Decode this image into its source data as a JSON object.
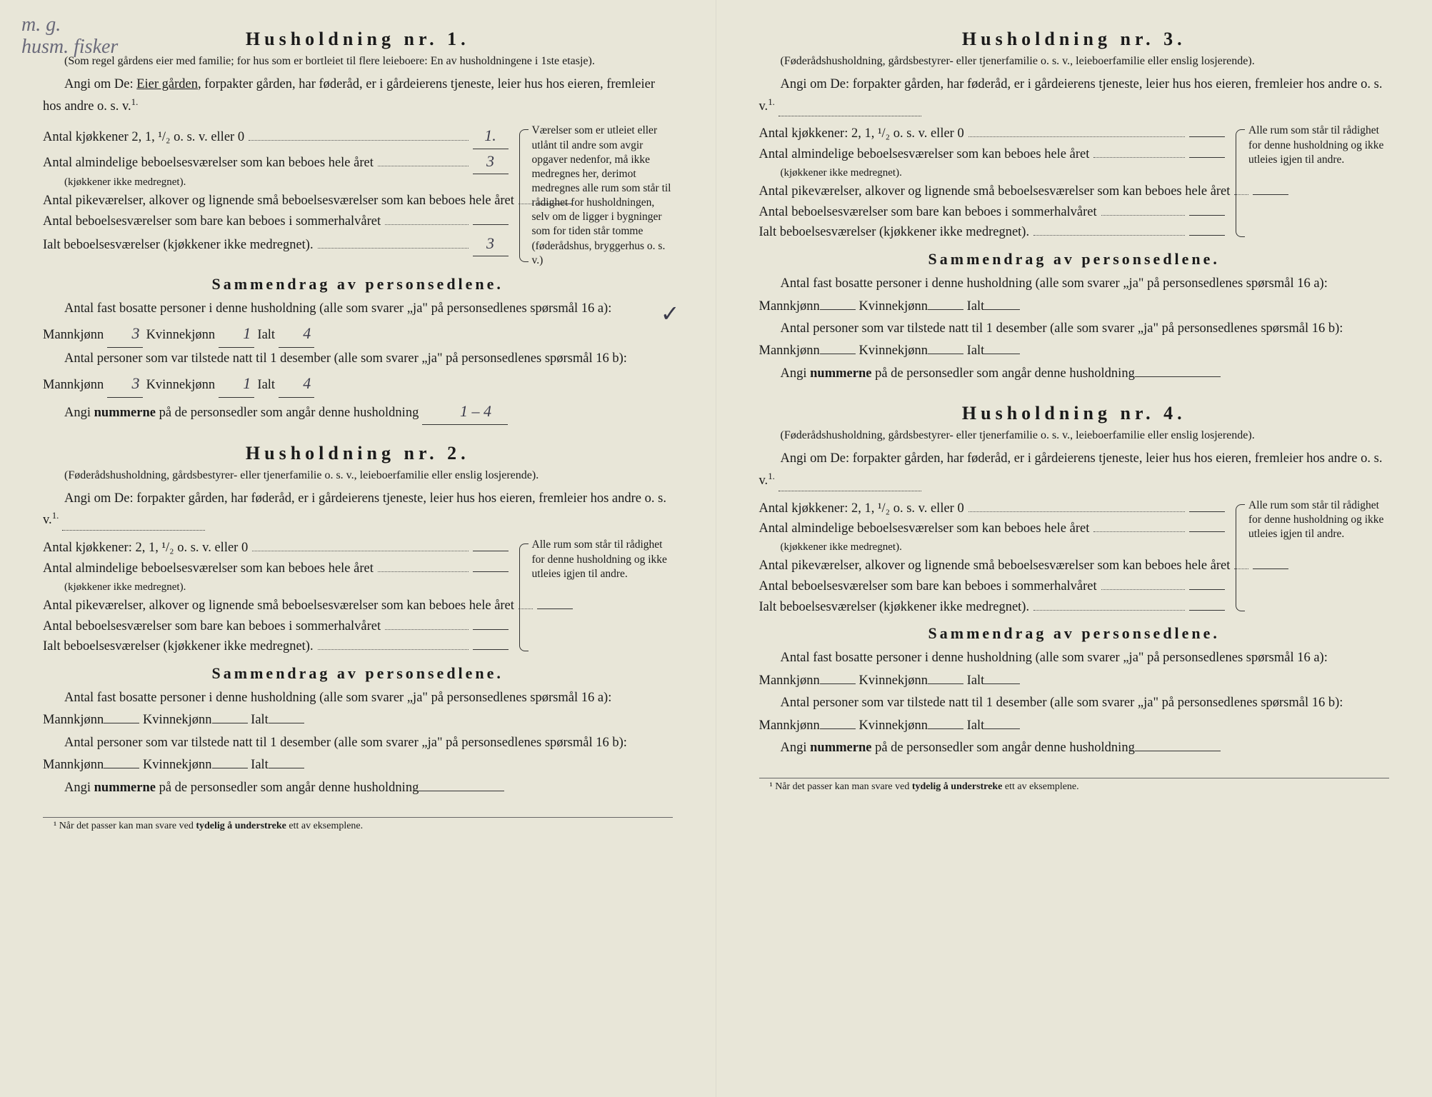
{
  "handwritten_note": "m. g.\nhusm. fisker",
  "households": [
    {
      "title": "Husholdning nr. 1.",
      "subtitle": "(Som regel gårdens eier med familie; for hus som er bortleiet til flere leieboere: En av husholdningene i 1ste etasje).",
      "instr_prefix": "Angi om De:",
      "instr_rest": "Eier gården, forpakter gården, har føderåd, er i gårdeierens tjeneste, leier hus hos eieren, fremleier hos andre o. s. v.",
      "instr_underlined": "Eier gården",
      "rooms": {
        "kjokken_label": "Antal kjøkkener 2, 1, ¹/₂ o. s. v. eller 0",
        "kjokken_val": "1.",
        "almind_label": "Antal almindelige beboelsesværelser som kan beboes hele året",
        "almind_sub": "(kjøkkener ikke medregnet).",
        "almind_val": "3",
        "pike_label": "Antal pikeværelser, alkover og lignende små beboelsesværelser som kan beboes hele året",
        "pike_val": "",
        "sommer_label": "Antal beboelsesværelser som bare kan beboes i sommerhalvåret",
        "sommer_val": "",
        "ialt_label": "Ialt beboelsesværelser (kjøkkener ikke medregnet).",
        "ialt_val": "3"
      },
      "sidebar_text": "Værelser som er utleiet eller utlånt til andre som avgir opgaver nedenfor, må ikke medregnes her, derimot medregnes alle rum som står til rådighet for husholdningen, selv om de ligger i bygninger som for tiden står tomme (føderådshus, bryggerhus o. s. v.)",
      "summary": {
        "title": "Sammendrag av personsedlene.",
        "line1_pre": "Antal fast bosatte personer i denne husholdning (alle som svarer „ja\" på personsedlenes spørsmål 16 a): Mannkjønn",
        "line1_m": "3",
        "line1_kv_label": "Kvinnekjønn",
        "line1_kv": "1",
        "line1_ialt_label": "Ialt",
        "line1_ialt": "4",
        "line2_pre": "Antal personer som var tilstede natt til 1 desember (alle som svarer „ja\" på personsedlenes spørsmål 16 b): Mannkjønn",
        "line2_m": "3",
        "line2_kv": "1",
        "line2_ialt": "4",
        "line3_pre": "Angi nummerne på de personsedler som angår denne husholdning",
        "line3_val": "1 – 4"
      }
    },
    {
      "title": "Husholdning nr. 2.",
      "subtitle": "(Føderådshusholdning, gårdsbestyrer- eller tjenerfamilie o. s. v., leieboerfamilie eller enslig losjerende).",
      "instr_prefix": "Angi om De:",
      "instr_rest": "forpakter gården, har føderåd, er i gårdeierens tjeneste, leier hus hos eieren, fremleier hos andre o. s. v.",
      "rooms": {
        "kjokken_label": "Antal kjøkkener: 2, 1, ¹/₂ o. s. v. eller 0",
        "kjokken_val": "",
        "almind_label": "Antal almindelige beboelsesværelser som kan beboes hele året",
        "almind_sub": "(kjøkkener ikke medregnet).",
        "almind_val": "",
        "pike_label": "Antal pikeværelser, alkover og lignende små beboelsesværelser som kan beboes hele året",
        "pike_val": "",
        "sommer_label": "Antal beboelsesværelser som bare kan beboes i sommerhalvåret",
        "sommer_val": "",
        "ialt_label": "Ialt beboelsesværelser (kjøkkener ikke medregnet).",
        "ialt_val": ""
      },
      "sidebar_text": "Alle rum som står til rådighet for denne husholdning og ikke utleies igjen til andre.",
      "summary": {
        "title": "Sammendrag av personsedlene.",
        "line1_pre": "Antal fast bosatte personer i denne husholdning (alle som svarer „ja\" på personsedlenes spørsmål 16 a): Mannkjønn",
        "line1_m": "",
        "line1_kv_label": "Kvinnekjønn",
        "line1_kv": "",
        "line1_ialt_label": "Ialt",
        "line1_ialt": "",
        "line2_pre": "Antal personer som var tilstede natt til 1 desember (alle som svarer „ja\" på personsedlenes spørsmål 16 b): Mannkjønn",
        "line2_m": "",
        "line2_kv": "",
        "line2_ialt": "",
        "line3_pre": "Angi nummerne på de personsedler som angår denne husholdning",
        "line3_val": ""
      }
    },
    {
      "title": "Husholdning nr. 3.",
      "subtitle": "(Føderådshusholdning, gårdsbestyrer- eller tjenerfamilie o. s. v., leieboerfamilie eller enslig losjerende).",
      "instr_prefix": "Angi om De:",
      "instr_rest": "forpakter gården, har føderåd, er i gårdeierens tjeneste, leier hus hos eieren, fremleier hos andre o. s. v.",
      "rooms": {
        "kjokken_label": "Antal kjøkkener: 2, 1, ¹/₂ o. s. v. eller 0",
        "kjokken_val": "",
        "almind_label": "Antal almindelige beboelsesværelser som kan beboes hele året",
        "almind_sub": "(kjøkkener ikke medregnet).",
        "almind_val": "",
        "pike_label": "Antal pikeværelser, alkover og lignende små beboelsesværelser som kan beboes hele året",
        "pike_val": "",
        "sommer_label": "Antal beboelsesværelser som bare kan beboes i sommerhalvåret",
        "sommer_val": "",
        "ialt_label": "Ialt beboelsesværelser (kjøkkener ikke medregnet).",
        "ialt_val": ""
      },
      "sidebar_text": "Alle rum som står til rådighet for denne husholdning og ikke utleies igjen til andre.",
      "summary": {
        "title": "Sammendrag av personsedlene.",
        "line1_pre": "Antal fast bosatte personer i denne husholdning (alle som svarer „ja\" på personsedlenes spørsmål 16 a): Mannkjønn",
        "line1_m": "",
        "line1_kv_label": "Kvinnekjønn",
        "line1_kv": "",
        "line1_ialt_label": "Ialt",
        "line1_ialt": "",
        "line2_pre": "Antal personer som var tilstede natt til 1 desember (alle som svarer „ja\" på personsedlenes spørsmål 16 b): Mannkjønn",
        "line2_m": "",
        "line2_kv": "",
        "line2_ialt": "",
        "line3_pre": "Angi nummerne på de personsedler som angår denne husholdning",
        "line3_val": ""
      }
    },
    {
      "title": "Husholdning nr. 4.",
      "subtitle": "(Føderådshusholdning, gårdsbestyrer- eller tjenerfamilie o. s. v., leieboerfamilie eller enslig losjerende).",
      "instr_prefix": "Angi om De:",
      "instr_rest": "forpakter gården, har føderåd, er i gårdeierens tjeneste, leier hus hos eieren, fremleier hos andre o. s. v.",
      "rooms": {
        "kjokken_label": "Antal kjøkkener: 2, 1, ¹/₂ o. s. v. eller 0",
        "kjokken_val": "",
        "almind_label": "Antal almindelige beboelsesværelser som kan beboes hele året",
        "almind_sub": "(kjøkkener ikke medregnet).",
        "almind_val": "",
        "pike_label": "Antal pikeværelser, alkover og lignende små beboelsesværelser som kan beboes hele året",
        "pike_val": "",
        "sommer_label": "Antal beboelsesværelser som bare kan beboes i sommerhalvåret",
        "sommer_val": "",
        "ialt_label": "Ialt beboelsesværelser (kjøkkener ikke medregnet).",
        "ialt_val": ""
      },
      "sidebar_text": "Alle rum som står til rådighet for denne husholdning og ikke utleies igjen til andre.",
      "summary": {
        "title": "Sammendrag av personsedlene.",
        "line1_pre": "Antal fast bosatte personer i denne husholdning (alle som svarer „ja\" på personsedlenes spørsmål 16 a): Mannkjønn",
        "line1_m": "",
        "line1_kv_label": "Kvinnekjønn",
        "line1_kv": "",
        "line1_ialt_label": "Ialt",
        "line1_ialt": "",
        "line2_pre": "Antal personer som var tilstede natt til 1 desember (alle som svarer „ja\" på personsedlenes spørsmål 16 b): Mannkjønn",
        "line2_m": "",
        "line2_kv": "",
        "line2_ialt": "",
        "line3_pre": "Angi nummerne på de personsedler som angår denne husholdning",
        "line3_val": ""
      }
    }
  ],
  "footnote": "¹ Når det passer kan man svare ved tydelig å understreke ett av eksemplene.",
  "colors": {
    "paper": "#e8e6d8",
    "ink": "#1a1a1a",
    "pencil": "#6a6a7a"
  }
}
